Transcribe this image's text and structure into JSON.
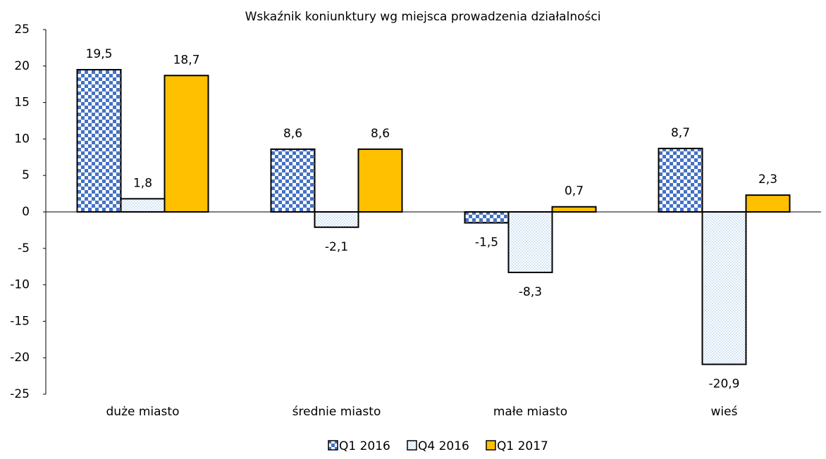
{
  "chart_data": {
    "type": "bar",
    "title": "Wskaźnik koniunktury wg miejsca prowadzenia działalności",
    "categories": [
      "duże miasto",
      "średnie miasto",
      "małe miasto",
      "wieś"
    ],
    "series": [
      {
        "name": "Q1 2016",
        "color": "#4472c4",
        "pattern": "checker",
        "values": [
          19.5,
          8.6,
          -1.5,
          8.7
        ],
        "value_labels": [
          "19,5",
          "8,6",
          "-1,5",
          "8,7"
        ]
      },
      {
        "name": "Q4 2016",
        "color": "#9dc3e6",
        "pattern": "dots",
        "values": [
          1.8,
          -2.1,
          -8.3,
          -20.9
        ],
        "value_labels": [
          "1,8",
          "-2,1",
          "-8,3",
          "-20,9"
        ]
      },
      {
        "name": "Q1 2017",
        "color": "#ffc000",
        "pattern": "solid",
        "values": [
          18.7,
          8.6,
          0.7,
          2.3
        ],
        "value_labels": [
          "18,7",
          "8,6",
          "0,7",
          "2,3"
        ]
      }
    ],
    "ylim": [
      -25,
      25
    ],
    "yticks": [
      -25,
      -20,
      -15,
      -10,
      -5,
      0,
      5,
      10,
      15,
      20,
      25
    ],
    "grid": false,
    "legend": "bottom"
  }
}
